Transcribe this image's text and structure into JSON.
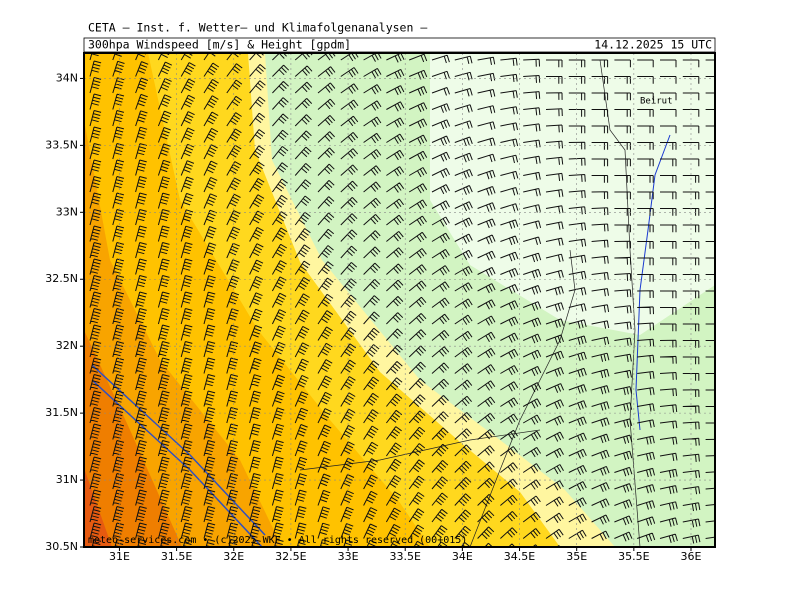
{
  "header": {
    "institute": "CETA – Inst. f. Wetter– und Klimafolgenanalysen –",
    "product": "300hpa Windspeed [m/s] & Height [gpdm]",
    "valid_time": "14.12.2025 15 UTC"
  },
  "map": {
    "xlim": [
      30.69,
      36.21
    ],
    "ylim": [
      30.5,
      34.19
    ],
    "xticks": [
      {
        "value": 31,
        "label": "31E"
      },
      {
        "value": 31.5,
        "label": "31.5E"
      },
      {
        "value": 32,
        "label": "32E"
      },
      {
        "value": 32.5,
        "label": "32.5E"
      },
      {
        "value": 33,
        "label": "33E"
      },
      {
        "value": 33.5,
        "label": "33.5E"
      },
      {
        "value": 34,
        "label": "34E"
      },
      {
        "value": 34.5,
        "label": "34.5E"
      },
      {
        "value": 35,
        "label": "35E"
      },
      {
        "value": 35.5,
        "label": "35.5E"
      },
      {
        "value": 36,
        "label": "36E"
      }
    ],
    "yticks": [
      {
        "value": 30.5,
        "label": "30.5N"
      },
      {
        "value": 31,
        "label": "31N"
      },
      {
        "value": 31.5,
        "label": "31.5N"
      },
      {
        "value": 32,
        "label": "32N"
      },
      {
        "value": 32.5,
        "label": "32.5N"
      },
      {
        "value": 33,
        "label": "33N"
      },
      {
        "value": 33.5,
        "label": "33.5N"
      },
      {
        "value": 34,
        "label": "34N"
      }
    ],
    "places": [
      "Beirut"
    ]
  },
  "footer": "meteo-services.com • (c)2025 WKF • All rights reserved (00+015)"
}
